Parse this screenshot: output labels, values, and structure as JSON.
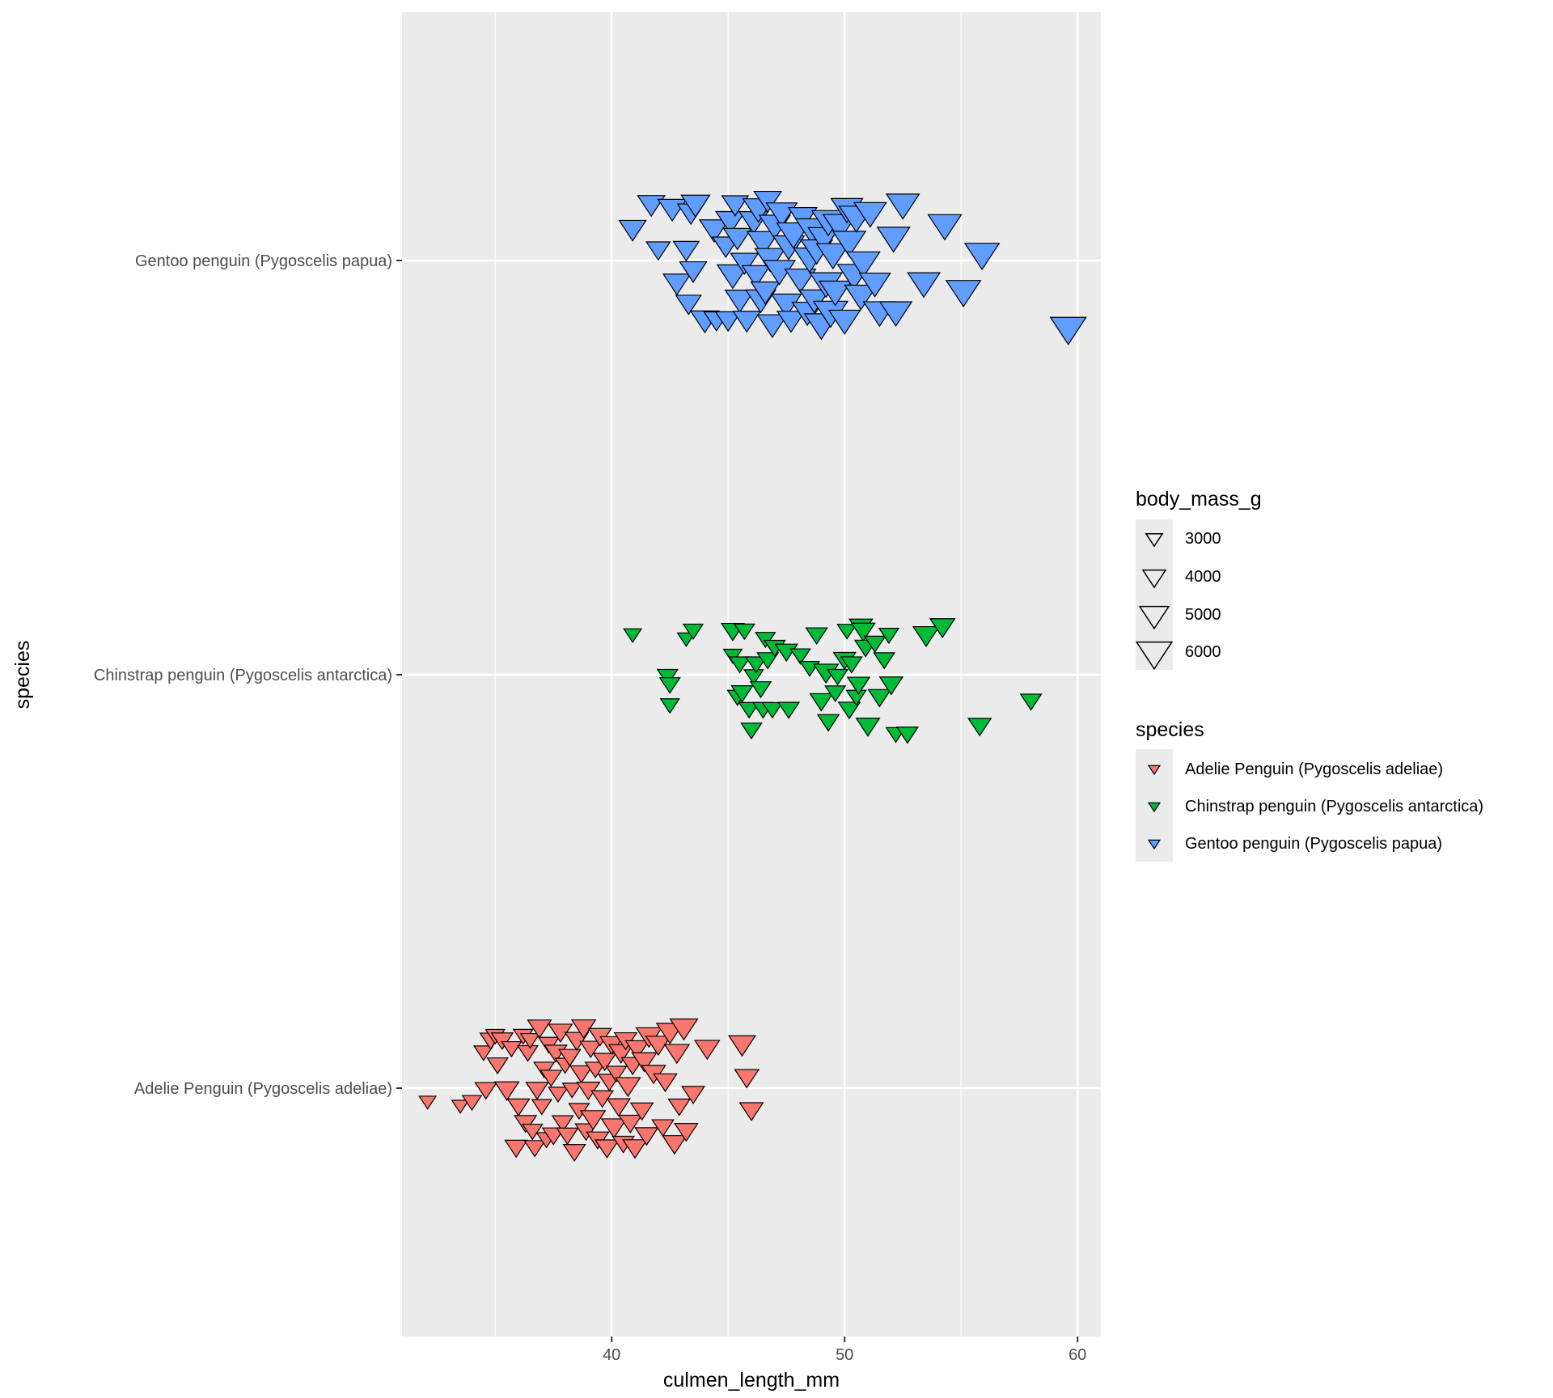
{
  "chart_data": {
    "type": "scatter",
    "xlabel": "culmen_length_mm",
    "ylabel": "species",
    "xlim": [
      31,
      61
    ],
    "x_ticks": [
      40,
      50,
      60
    ],
    "x_tick_labels": [
      "40",
      "50",
      "60"
    ],
    "categories": [
      "Adelie Penguin (Pygoscelis adeliae)",
      "Chinstrap penguin (Pygoscelis antarctica)",
      "Gentoo penguin (Pygoscelis papua)"
    ],
    "grid": true,
    "shape": "downward-triangle",
    "jitter": "vertical",
    "colors": {
      "Adelie Penguin (Pygoscelis adeliae)": "#F8766D",
      "Chinstrap penguin (Pygoscelis antarctica)": "#00BA38",
      "Gentoo penguin (Pygoscelis papua)": "#619CFF"
    },
    "size_legend": {
      "title": "body_mass_g",
      "values": [
        3000,
        4000,
        5000,
        6000
      ],
      "labels": [
        "3000",
        "4000",
        "5000",
        "6000"
      ]
    },
    "color_legend": {
      "title": "species",
      "entries": [
        "Adelie Penguin (Pygoscelis adeliae)",
        "Chinstrap penguin (Pygoscelis antarctica)",
        "Gentoo penguin (Pygoscelis papua)"
      ]
    },
    "legend_position": "right",
    "series": [
      {
        "name": "Adelie Penguin (Pygoscelis adeliae)",
        "points": [
          [
            32.1,
            -0.03,
            3050
          ],
          [
            33.5,
            -0.04,
            3050
          ],
          [
            34.0,
            -0.03,
            3400
          ],
          [
            34.5,
            0.09,
            3400
          ],
          [
            34.6,
            0.0,
            3800
          ],
          [
            34.8,
            0.12,
            3700
          ],
          [
            35.0,
            0.13,
            3400
          ],
          [
            35.1,
            0.06,
            3650
          ],
          [
            35.3,
            0.12,
            3800
          ],
          [
            35.5,
            0.0,
            4200
          ],
          [
            35.7,
            0.1,
            3500
          ],
          [
            35.9,
            -0.14,
            3900
          ],
          [
            36.0,
            -0.04,
            3850
          ],
          [
            36.2,
            0.13,
            3450
          ],
          [
            36.3,
            -0.08,
            3850
          ],
          [
            36.4,
            0.09,
            3600
          ],
          [
            36.5,
            0.12,
            3400
          ],
          [
            36.6,
            -0.1,
            3550
          ],
          [
            36.7,
            -0.14,
            3700
          ],
          [
            36.8,
            0.0,
            3900
          ],
          [
            36.9,
            0.15,
            4100
          ],
          [
            37.0,
            -0.04,
            3500
          ],
          [
            37.1,
            0.05,
            3600
          ],
          [
            37.2,
            -0.12,
            3500
          ],
          [
            37.3,
            0.11,
            3600
          ],
          [
            37.4,
            0.03,
            3700
          ],
          [
            37.5,
            -0.11,
            3850
          ],
          [
            37.6,
            0.09,
            3900
          ],
          [
            37.7,
            -0.01,
            3450
          ],
          [
            37.8,
            0.14,
            4100
          ],
          [
            37.9,
            -0.08,
            3700
          ],
          [
            38.0,
            0.06,
            3500
          ],
          [
            38.1,
            -0.11,
            3750
          ],
          [
            38.2,
            0.08,
            3800
          ],
          [
            38.3,
            0.0,
            3400
          ],
          [
            38.4,
            -0.15,
            3850
          ],
          [
            38.5,
            0.12,
            4100
          ],
          [
            38.6,
            -0.05,
            3600
          ],
          [
            38.7,
            0.04,
            3900
          ],
          [
            38.8,
            0.15,
            4150
          ],
          [
            38.9,
            -0.1,
            3800
          ],
          [
            39.0,
            0.0,
            4000
          ],
          [
            39.1,
            0.1,
            3750
          ],
          [
            39.2,
            -0.07,
            4300
          ],
          [
            39.3,
            0.05,
            3600
          ],
          [
            39.4,
            -0.12,
            3900
          ],
          [
            39.5,
            0.13,
            4000
          ],
          [
            39.6,
            -0.02,
            3800
          ],
          [
            39.7,
            0.07,
            3950
          ],
          [
            39.8,
            -0.14,
            4100
          ],
          [
            39.9,
            0.02,
            3800
          ],
          [
            40.0,
            0.11,
            4000
          ],
          [
            40.1,
            -0.09,
            4350
          ],
          [
            40.2,
            0.04,
            3600
          ],
          [
            40.3,
            -0.04,
            4000
          ],
          [
            40.4,
            0.09,
            4200
          ],
          [
            40.5,
            -0.13,
            3800
          ],
          [
            40.6,
            0.12,
            3900
          ],
          [
            40.7,
            0.01,
            4300
          ],
          [
            40.8,
            -0.08,
            4000
          ],
          [
            40.9,
            0.06,
            3900
          ],
          [
            41.0,
            -0.14,
            4200
          ],
          [
            41.1,
            0.1,
            4100
          ],
          [
            41.3,
            -0.05,
            3900
          ],
          [
            41.4,
            0.07,
            4300
          ],
          [
            41.5,
            -0.11,
            4000
          ],
          [
            41.6,
            0.13,
            4450
          ],
          [
            41.8,
            0.04,
            4150
          ],
          [
            42.0,
            0.11,
            4300
          ],
          [
            42.2,
            -0.09,
            3800
          ],
          [
            42.3,
            0.02,
            4050
          ],
          [
            42.5,
            0.14,
            4600
          ],
          [
            42.7,
            -0.13,
            4200
          ],
          [
            42.8,
            0.09,
            4300
          ],
          [
            42.9,
            -0.04,
            3800
          ],
          [
            43.1,
            0.15,
            4750
          ],
          [
            43.2,
            -0.1,
            4050
          ],
          [
            43.5,
            -0.01,
            3950
          ],
          [
            44.1,
            0.1,
            4300
          ],
          [
            45.6,
            0.11,
            4600
          ],
          [
            45.8,
            0.03,
            4200
          ],
          [
            46.0,
            -0.05,
            4100
          ]
        ]
      },
      {
        "name": "Chinstrap penguin (Pygoscelis antarctica)",
        "points": [
          [
            40.9,
            0.1,
            3200
          ],
          [
            42.4,
            0.0,
            3600
          ],
          [
            42.5,
            -0.07,
            3350
          ],
          [
            42.5,
            -0.02,
            3600
          ],
          [
            43.2,
            0.09,
            3150
          ],
          [
            43.5,
            0.11,
            3500
          ],
          [
            45.2,
            0.11,
            3950
          ],
          [
            45.2,
            0.05,
            3300
          ],
          [
            45.4,
            -0.05,
            3525
          ],
          [
            45.5,
            0.03,
            3650
          ],
          [
            45.6,
            -0.04,
            3750
          ],
          [
            45.7,
            0.11,
            3575
          ],
          [
            45.9,
            -0.08,
            3575
          ],
          [
            46.0,
            -0.13,
            3650
          ],
          [
            46.1,
            0.0,
            3400
          ],
          [
            46.2,
            0.03,
            3650
          ],
          [
            46.4,
            -0.03,
            3650
          ],
          [
            46.5,
            -0.08,
            3600
          ],
          [
            46.6,
            0.09,
            3500
          ],
          [
            46.7,
            0.04,
            3700
          ],
          [
            46.9,
            -0.08,
            3550
          ],
          [
            47.0,
            0.07,
            3700
          ],
          [
            47.5,
            0.06,
            3900
          ],
          [
            47.6,
            -0.08,
            3700
          ],
          [
            48.1,
            0.05,
            3525
          ],
          [
            48.5,
            0.02,
            3450
          ],
          [
            48.8,
            0.1,
            3750
          ],
          [
            49.0,
            -0.06,
            3950
          ],
          [
            49.2,
            0.01,
            4300
          ],
          [
            49.3,
            -0.11,
            3775
          ],
          [
            49.6,
            -0.04,
            3600
          ],
          [
            49.7,
            0.0,
            3600
          ],
          [
            50.0,
            0.04,
            3900
          ],
          [
            50.1,
            0.11,
            3400
          ],
          [
            50.2,
            -0.08,
            3800
          ],
          [
            50.3,
            0.03,
            3700
          ],
          [
            50.5,
            -0.05,
            3500
          ],
          [
            50.6,
            -0.02,
            3900
          ],
          [
            50.7,
            0.12,
            4050
          ],
          [
            50.8,
            0.11,
            4100
          ],
          [
            50.9,
            0.07,
            3800
          ],
          [
            51.0,
            -0.12,
            4100
          ],
          [
            51.3,
            0.08,
            3700
          ],
          [
            51.5,
            -0.05,
            3950
          ],
          [
            51.7,
            0.04,
            3675
          ],
          [
            51.9,
            0.1,
            3500
          ],
          [
            52.0,
            -0.02,
            4050
          ],
          [
            52.2,
            -0.14,
            3450
          ],
          [
            52.7,
            -0.14,
            3725
          ],
          [
            53.5,
            0.1,
            4500
          ],
          [
            54.2,
            0.12,
            4300
          ],
          [
            55.8,
            -0.12,
            4000
          ],
          [
            58.0,
            -0.06,
            3700
          ]
        ]
      },
      {
        "name": "Gentoo penguin (Pygoscelis papua)",
        "points": [
          [
            40.9,
            0.08,
            4650
          ],
          [
            41.7,
            0.14,
            4700
          ],
          [
            42.0,
            0.03,
            4150
          ],
          [
            42.6,
            0.13,
            4900
          ],
          [
            42.8,
            -0.05,
            4700
          ],
          [
            43.2,
            0.03,
            4450
          ],
          [
            43.3,
            -0.1,
            4400
          ],
          [
            43.4,
            0.12,
            4600
          ],
          [
            43.5,
            -0.02,
            4650
          ],
          [
            43.6,
            0.14,
            4900
          ],
          [
            44.0,
            -0.14,
            4900
          ],
          [
            44.4,
            0.08,
            5000
          ],
          [
            44.5,
            -0.14,
            4350
          ],
          [
            44.9,
            0.04,
            4600
          ],
          [
            45.0,
            -0.14,
            4400
          ],
          [
            45.1,
            0.1,
            5000
          ],
          [
            45.2,
            -0.03,
            5300
          ],
          [
            45.3,
            0.14,
            4550
          ],
          [
            45.4,
            0.06,
            4800
          ],
          [
            45.5,
            -0.09,
            5000
          ],
          [
            45.7,
            0.0,
            4750
          ],
          [
            45.8,
            -0.14,
            4700
          ],
          [
            46.1,
            0.1,
            4950
          ],
          [
            46.2,
            -0.03,
            4800
          ],
          [
            46.3,
            0.13,
            5250
          ],
          [
            46.4,
            -0.09,
            5100
          ],
          [
            46.5,
            0.05,
            5400
          ],
          [
            46.6,
            -0.07,
            4950
          ],
          [
            46.7,
            0.15,
            4700
          ],
          [
            46.8,
            0.01,
            5150
          ],
          [
            46.9,
            -0.15,
            5100
          ],
          [
            47.0,
            0.09,
            5300
          ],
          [
            47.2,
            -0.02,
            5400
          ],
          [
            47.3,
            0.12,
            5250
          ],
          [
            47.5,
            -0.1,
            5100
          ],
          [
            47.6,
            0.04,
            5350
          ],
          [
            47.7,
            -0.14,
            4750
          ],
          [
            47.8,
            0.07,
            5650
          ],
          [
            48.1,
            -0.04,
            5250
          ],
          [
            48.2,
            0.11,
            4900
          ],
          [
            48.4,
            -0.12,
            5200
          ],
          [
            48.5,
            0.01,
            5450
          ],
          [
            48.6,
            0.08,
            5600
          ],
          [
            48.7,
            -0.09,
            5100
          ],
          [
            48.8,
            0.03,
            5400
          ],
          [
            49.0,
            -0.15,
            5700
          ],
          [
            49.1,
            0.06,
            5300
          ],
          [
            49.2,
            -0.05,
            5500
          ],
          [
            49.3,
            0.1,
            5600
          ],
          [
            49.4,
            -0.12,
            5800
          ],
          [
            49.5,
            0.02,
            5600
          ],
          [
            49.6,
            -0.07,
            5450
          ],
          [
            49.8,
            0.09,
            5700
          ],
          [
            50.0,
            -0.14,
            5350
          ],
          [
            50.1,
            0.13,
            5400
          ],
          [
            50.2,
            0.05,
            5600
          ],
          [
            50.4,
            -0.03,
            5550
          ],
          [
            50.5,
            0.11,
            5800
          ],
          [
            50.7,
            -0.08,
            5500
          ],
          [
            50.8,
            0.0,
            5650
          ],
          [
            51.1,
            0.12,
            5500
          ],
          [
            51.3,
            -0.05,
            5300
          ],
          [
            51.5,
            -0.12,
            5500
          ],
          [
            52.1,
            0.06,
            5550
          ],
          [
            52.2,
            -0.12,
            5450
          ],
          [
            52.5,
            0.14,
            5600
          ],
          [
            53.4,
            -0.05,
            5500
          ],
          [
            54.3,
            0.09,
            5650
          ],
          [
            55.1,
            -0.07,
            5850
          ],
          [
            55.9,
            0.02,
            5850
          ],
          [
            59.6,
            -0.16,
            6050
          ]
        ]
      }
    ]
  }
}
